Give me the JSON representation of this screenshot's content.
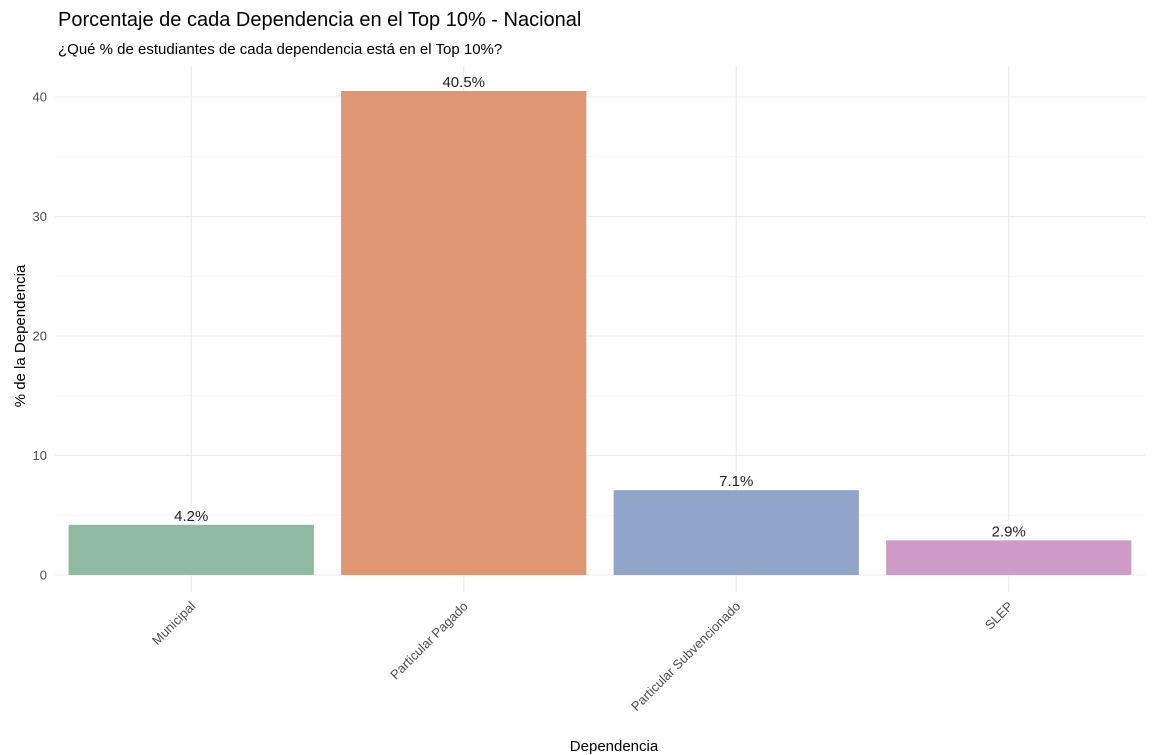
{
  "chart_data": {
    "type": "bar",
    "title": "Porcentaje de cada Dependencia en el Top 10% - Nacional",
    "subtitle": "¿Qué % de estudiantes de cada dependencia está en el Top 10%?",
    "xlabel": "Dependencia",
    "ylabel": "% de la Dependencia",
    "categories": [
      "Municipal",
      "Particular Pagado",
      "Particular Subvencionado",
      "SLEP"
    ],
    "values": [
      4.2,
      40.5,
      7.1,
      2.9
    ],
    "data_labels": [
      "4.2%",
      "40.5%",
      "7.1%",
      "2.9%"
    ],
    "colors": [
      "#8fb9a0",
      "#df9673",
      "#91a5ca",
      "#cd9bc6"
    ],
    "yticks": [
      0,
      10,
      20,
      30,
      40
    ],
    "ylim": [
      0,
      42.5
    ],
    "grid": true,
    "legend": "none"
  }
}
